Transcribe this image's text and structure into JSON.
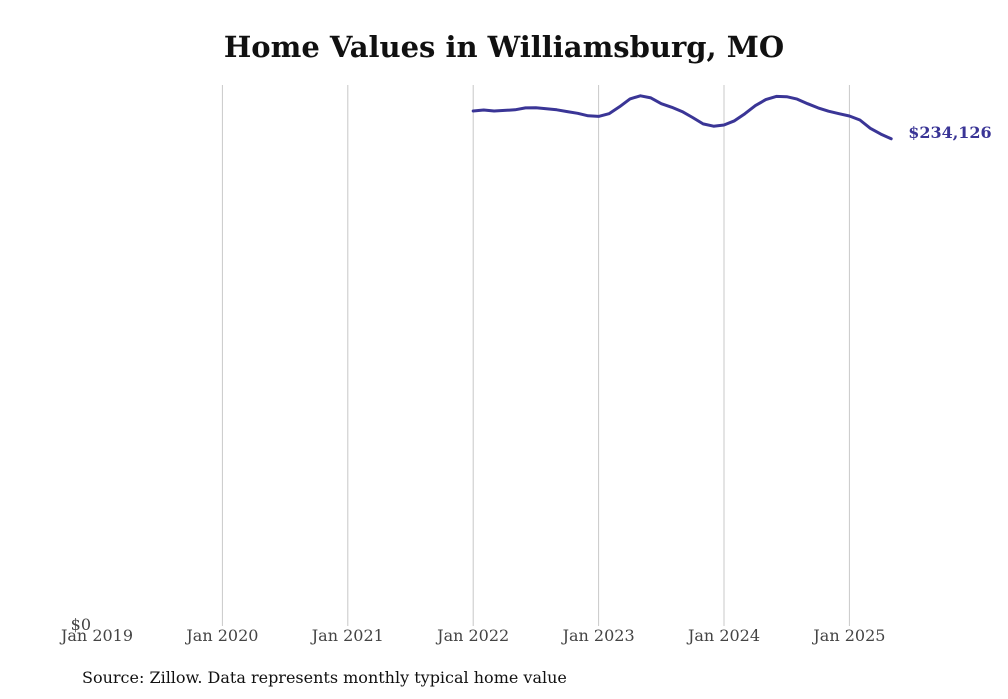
{
  "chart_data": {
    "type": "line",
    "title": "Home Values in Williamsburg, MO",
    "xlabel": "",
    "ylabel": "",
    "x_tick_labels": [
      "Jan 2019",
      "Jan 2020",
      "Jan 2021",
      "Jan 2022",
      "Jan 2023",
      "Jan 2024",
      "Jan 2025"
    ],
    "y_tick_labels": [
      "$0"
    ],
    "ylim": [
      0,
      260000
    ],
    "grid": "vertical",
    "series": [
      {
        "color": "#3a3596",
        "end_label": "$234,126",
        "x": [
          "2022-01",
          "2022-02",
          "2022-03",
          "2022-04",
          "2022-05",
          "2022-06",
          "2022-07",
          "2022-08",
          "2022-09",
          "2022-10",
          "2022-11",
          "2022-12",
          "2023-01",
          "2023-02",
          "2023-03",
          "2023-04",
          "2023-05",
          "2023-06",
          "2023-07",
          "2023-08",
          "2023-09",
          "2023-10",
          "2023-11",
          "2023-12",
          "2024-01",
          "2024-02",
          "2024-03",
          "2024-04",
          "2024-05",
          "2024-06",
          "2024-07",
          "2024-08",
          "2024-09",
          "2024-10",
          "2024-11",
          "2024-12",
          "2025-01",
          "2025-02",
          "2025-03",
          "2025-04",
          "2025-05"
        ],
        "values": [
          247500,
          248000,
          247500,
          247800,
          248100,
          249000,
          249100,
          248600,
          248100,
          247200,
          246400,
          245200,
          244900,
          246200,
          249500,
          253300,
          254800,
          253800,
          251000,
          249300,
          247200,
          244400,
          241300,
          240200,
          240800,
          242800,
          246200,
          250100,
          253000,
          254500,
          254400,
          253200,
          251000,
          249000,
          247400,
          246200,
          245100,
          243200,
          239200,
          236400,
          234126
        ]
      }
    ]
  },
  "footer": {
    "source": "Source: Zillow. Data represents monthly typical home value"
  }
}
